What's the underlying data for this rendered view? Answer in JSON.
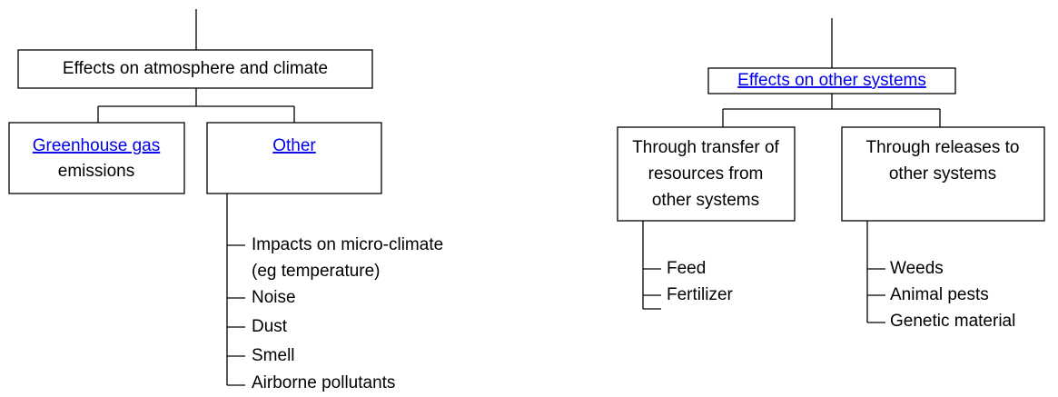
{
  "left": {
    "root": "Effects on atmosphere and climate",
    "children": [
      {
        "label": [
          "Greenhouse gas",
          "emissions"
        ]
      },
      {
        "label": [
          "Other"
        ],
        "items": [
          [
            "Impacts on micro-climate",
            "(eg temperature)"
          ],
          [
            "Noise"
          ],
          [
            "Dust"
          ],
          [
            "Smell"
          ],
          [
            "Airborne pollutants"
          ]
        ]
      }
    ]
  },
  "right": {
    "root": "Effects on other systems",
    "children": [
      {
        "label": [
          "Through transfer of",
          "resources from",
          "other systems"
        ],
        "items": [
          [
            "Feed"
          ],
          [
            "Fertilizer"
          ]
        ]
      },
      {
        "label": [
          "Through releases to",
          "other systems"
        ],
        "items": [
          [
            "Weeds"
          ],
          [
            "Animal pests"
          ],
          [
            "Genetic material"
          ]
        ]
      }
    ]
  }
}
